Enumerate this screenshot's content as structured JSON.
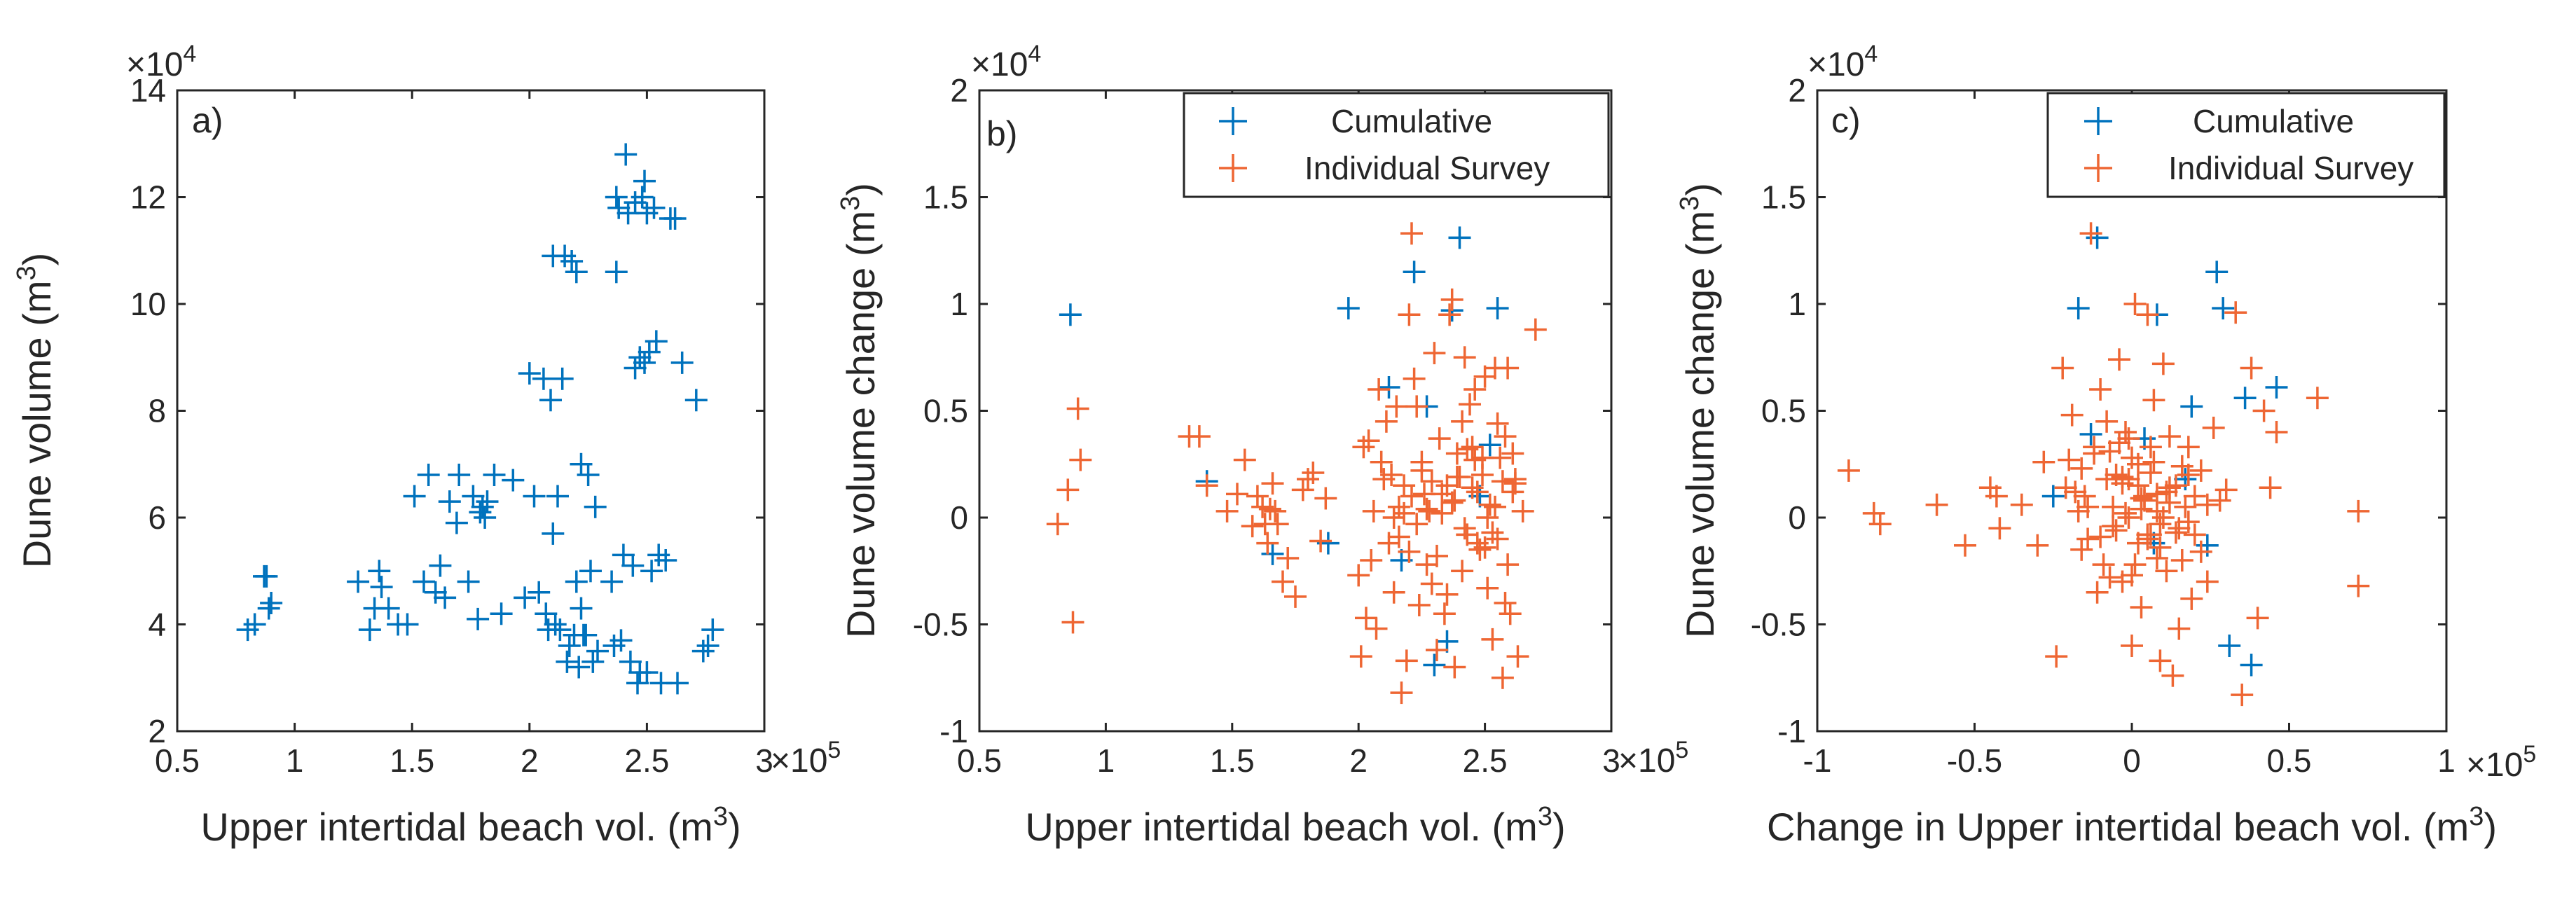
{
  "colors": {
    "cumulative": "#0072BD",
    "individual": "#EE6633",
    "axis": "#262626"
  },
  "chart_data": [
    {
      "type": "scatter",
      "panel_letter": "a)",
      "title": "",
      "xlabel": "Upper intertidal beach vol. (m",
      "xlabel_sup": "3",
      "xlabel_end": ")",
      "ylabel": "Dune volume (m",
      "ylabel_sup": "3",
      "ylabel_end": ")",
      "xlim": [
        0.5,
        3
      ],
      "ylim": [
        2,
        14
      ],
      "xticks": [
        0.5,
        1,
        1.5,
        2,
        2.5,
        3
      ],
      "xticklabels": [
        "0.5",
        "1",
        "1.5",
        "2",
        "2.5",
        "3"
      ],
      "yticks": [
        2,
        4,
        6,
        8,
        10,
        12,
        14
      ],
      "yticklabels": [
        "2",
        "4",
        "6",
        "8",
        "10",
        "12",
        "14"
      ],
      "x_exponent_base": "×10",
      "x_exponent_power": "5",
      "y_exponent_base": "×10",
      "y_exponent_power": "4",
      "legend": null,
      "series": [
        {
          "name": "Cumulative",
          "color_key": "cumulative",
          "x": [
            0.8,
            0.83,
            0.87,
            0.88,
            0.89,
            0.9,
            1.27,
            1.32,
            1.34,
            1.36,
            1.37,
            1.4,
            1.44,
            1.48,
            1.51,
            1.55,
            1.57,
            1.6,
            1.62,
            1.64,
            1.66,
            1.69,
            1.7,
            1.74,
            1.76,
            1.78,
            1.79,
            1.8,
            1.81,
            1.82,
            1.85,
            1.88,
            1.93,
            1.98,
            2.0,
            2.02,
            2.04,
            2.06,
            2.07,
            2.08,
            2.09,
            2.1,
            2.1,
            2.11,
            2.12,
            2.13,
            2.14,
            2.15,
            2.16,
            2.17,
            2.18,
            2.19,
            2.2,
            2.2,
            2.21,
            2.22,
            2.22,
            2.23,
            2.24,
            2.25,
            2.26,
            2.27,
            2.28,
            2.29,
            2.35,
            2.36,
            2.37,
            2.37,
            2.38,
            2.39,
            2.4,
            2.41,
            2.42,
            2.43,
            2.44,
            2.45,
            2.45,
            2.46,
            2.47,
            2.47,
            2.48,
            2.49,
            2.49,
            2.5,
            2.5,
            2.51,
            2.52,
            2.53,
            2.54,
            2.55,
            2.56,
            2.58,
            2.6,
            2.62,
            2.63,
            2.65,
            2.71,
            2.74,
            2.76,
            2.78
          ],
          "y": [
            3.9,
            4.0,
            4.9,
            4.9,
            4.3,
            4.4,
            4.8,
            3.9,
            4.3,
            5.0,
            4.7,
            4.3,
            4.0,
            4.0,
            6.4,
            4.8,
            6.8,
            4.6,
            5.1,
            4.5,
            6.3,
            5.9,
            6.8,
            4.8,
            6.4,
            4.1,
            6.1,
            6.2,
            6.0,
            6.3,
            6.8,
            4.2,
            6.7,
            4.5,
            8.7,
            6.4,
            4.6,
            8.6,
            4.2,
            3.9,
            8.2,
            5.7,
            10.9,
            4.0,
            6.4,
            3.9,
            8.6,
            10.9,
            3.3,
            3.6,
            10.8,
            3.8,
            4.8,
            10.6,
            3.2,
            4.3,
            7.0,
            3.8,
            3.8,
            6.8,
            5.0,
            3.3,
            6.2,
            3.5,
            4.8,
            3.6,
            12.0,
            10.6,
            11.8,
            3.7,
            5.3,
            12.8,
            11.7,
            3.3,
            5.1,
            8.8,
            11.9,
            2.9,
            9.0,
            3.1,
            12.0,
            12.3,
            8.9,
            11.7,
            3.1,
            9.1,
            5.0,
            11.8,
            9.3,
            5.3,
            2.9,
            5.2,
            11.6,
            11.6,
            2.9,
            8.9,
            8.2,
            3.5,
            3.6,
            3.9
          ]
        }
      ]
    },
    {
      "type": "scatter",
      "panel_letter": "b)",
      "title": "",
      "xlabel": "Upper intertidal beach vol. (m",
      "xlabel_sup": "3",
      "xlabel_end": ")",
      "ylabel": "Dune volume change (m",
      "ylabel_sup": "3",
      "ylabel_end": ")",
      "xlim": [
        0.5,
        3
      ],
      "ylim": [
        -1,
        2
      ],
      "xticks": [
        0.5,
        1,
        1.5,
        2,
        2.5,
        3
      ],
      "xticklabels": [
        "0.5",
        "1",
        "1.5",
        "2",
        "2.5",
        "3"
      ],
      "yticks": [
        -1,
        -0.5,
        0,
        0.5,
        1,
        1.5,
        2
      ],
      "yticklabels": [
        "-1",
        "-0.5",
        "0",
        "0.5",
        "1",
        "1.5",
        "2"
      ],
      "x_exponent_base": "×10",
      "x_exponent_power": "5",
      "y_exponent_base": "×10",
      "y_exponent_power": "4",
      "legend": {
        "location": "top-right",
        "entries": [
          "Cumulative",
          "Individual Survey"
        ]
      },
      "series": [
        {
          "name": "Cumulative",
          "color_key": "cumulative",
          "x": [
            0.86,
            1.4,
            1.66,
            1.88,
            1.96,
            2.12,
            2.17,
            2.22,
            2.27,
            2.3,
            2.35,
            2.37,
            2.4,
            2.48,
            2.52,
            2.55
          ],
          "y": [
            0.95,
            0.17,
            -0.17,
            -0.12,
            0.98,
            0.61,
            -0.2,
            1.15,
            0.52,
            -0.69,
            -0.58,
            0.97,
            1.31,
            0.1,
            0.34,
            0.98
          ]
        },
        {
          "name": "Individual Survey",
          "color_key": "individual",
          "x": [
            0.81,
            0.85,
            0.87,
            0.89,
            0.9,
            1.33,
            1.37,
            1.4,
            1.48,
            1.52,
            1.55,
            1.58,
            1.6,
            1.62,
            1.63,
            1.64,
            1.65,
            1.66,
            1.67,
            1.68,
            1.7,
            1.72,
            1.75,
            1.78,
            1.8,
            1.82,
            1.85,
            1.87,
            2.0,
            2.01,
            2.02,
            2.03,
            2.04,
            2.05,
            2.06,
            2.07,
            2.08,
            2.09,
            2.1,
            2.11,
            2.12,
            2.13,
            2.14,
            2.15,
            2.16,
            2.17,
            2.18,
            2.19,
            2.2,
            2.21,
            2.22,
            2.23,
            2.24,
            2.25,
            2.26,
            2.27,
            2.28,
            2.29,
            2.3,
            2.31,
            2.32,
            2.33,
            2.34,
            2.35,
            2.36,
            2.37,
            2.38,
            2.39,
            2.4,
            2.41,
            2.42,
            2.43,
            2.44,
            2.45,
            2.46,
            2.47,
            2.48,
            2.49,
            2.5,
            2.51,
            2.52,
            2.53,
            2.54,
            2.55,
            2.56,
            2.57,
            2.58,
            2.59,
            2.6,
            2.61,
            2.62,
            2.63,
            2.65,
            2.7,
            2.21,
            2.23,
            2.25,
            2.27,
            2.29,
            2.31,
            2.33,
            2.35,
            2.37,
            2.39,
            2.41,
            2.43,
            2.45,
            2.47,
            2.49,
            2.51,
            2.53,
            2.55,
            2.57,
            2.59,
            2.61,
            2.38,
            2.42,
            2.46,
            2.5,
            2.54,
            2.58,
            2.62,
            2.14,
            2.16,
            2.18,
            2.2
          ],
          "y": [
            -0.03,
            0.13,
            -0.49,
            0.51,
            0.27,
            0.38,
            0.38,
            0.15,
            0.03,
            0.11,
            0.27,
            -0.04,
            0.1,
            0.05,
            -0.03,
            -0.12,
            0.04,
            0.16,
            0.03,
            -0.03,
            -0.3,
            -0.19,
            -0.37,
            0.13,
            0.18,
            0.21,
            -0.11,
            0.09,
            -0.27,
            -0.65,
            0.33,
            -0.47,
            0.36,
            -0.2,
            0.03,
            -0.52,
            0.6,
            0.26,
            0.18,
            0.45,
            -0.12,
            0.2,
            -0.35,
            0.52,
            0.05,
            -0.82,
            0.15,
            -0.67,
            0.95,
            1.33,
            0.65,
            0.52,
            -0.41,
            0.26,
            0.11,
            -0.22,
            0.03,
            -0.31,
            0.77,
            -0.62,
            0.37,
            0.11,
            -0.45,
            0.15,
            0.95,
            1.02,
            -0.7,
            0.3,
            0.19,
            0.45,
            0.75,
            -0.08,
            0.53,
            0.33,
            0.6,
            0.12,
            -0.15,
            0.2,
            0.66,
            -0.33,
            0.06,
            -0.57,
            0.7,
            -0.1,
            0.28,
            -0.75,
            0.38,
            0.7,
            -0.45,
            0.3,
            0.18,
            -0.65,
            0.03,
            0.88,
            0.1,
            -0.03,
            0.22,
            0.04,
            0.17,
            -0.18,
            0.02,
            -0.36,
            0.07,
            0.19,
            -0.25,
            0.32,
            0.14,
            -0.12,
            0.28,
            0.0,
            -0.07,
            0.44,
            0.17,
            -0.22,
            0.12,
            0.08,
            -0.05,
            0.27,
            -0.14,
            0.05,
            -0.4,
            0.16,
            0.0,
            -0.09,
            0.02,
            -0.16
          ]
        }
      ]
    },
    {
      "type": "scatter",
      "panel_letter": "c)",
      "title": "",
      "xlabel": "Change in Upper intertidal beach vol. (m",
      "xlabel_sup": "3",
      "xlabel_end": ")",
      "ylabel": "Dune volume change (m",
      "ylabel_sup": "3",
      "ylabel_end": ")",
      "xlim": [
        -1,
        1
      ],
      "ylim": [
        -1,
        2
      ],
      "xticks": [
        -1,
        -0.5,
        0,
        0.5,
        1
      ],
      "xticklabels": [
        "-1",
        "-0.5",
        "0",
        "0.5",
        "1"
      ],
      "yticks": [
        -1,
        -0.5,
        0,
        0.5,
        1,
        1.5,
        2
      ],
      "yticklabels": [
        "-1",
        "-0.5",
        "0",
        "0.5",
        "1",
        "1.5",
        "2"
      ],
      "x_exponent_base": "×10",
      "x_exponent_power": "5",
      "y_exponent_base": "×10",
      "y_exponent_power": "4",
      "legend": {
        "location": "top-right",
        "entries": [
          "Cumulative",
          "Individual Survey"
        ]
      },
      "series": [
        {
          "name": "Cumulative",
          "color_key": "cumulative",
          "x": [
            -0.25,
            -0.17,
            -0.13,
            -0.11,
            0.04,
            0.08,
            0.17,
            0.19,
            0.24,
            0.27,
            0.29,
            0.31,
            0.36,
            0.38,
            0.46,
            0.07
          ],
          "y": [
            0.1,
            0.98,
            0.39,
            1.31,
            0.37,
            0.95,
            0.18,
            0.52,
            -0.13,
            1.15,
            0.98,
            -0.6,
            0.56,
            -0.69,
            0.61,
            -0.12
          ]
        },
        {
          "name": "Individual Survey",
          "color_key": "individual",
          "x": [
            -0.9,
            -0.82,
            -0.8,
            -0.62,
            -0.53,
            -0.45,
            -0.43,
            -0.42,
            -0.35,
            -0.3,
            -0.28,
            -0.24,
            -0.22,
            -0.21,
            -0.19,
            -0.17,
            -0.16,
            -0.15,
            -0.14,
            -0.13,
            -0.12,
            -0.11,
            -0.1,
            -0.09,
            -0.08,
            -0.07,
            -0.06,
            -0.05,
            -0.04,
            -0.03,
            -0.02,
            -0.01,
            0.0,
            0.01,
            0.02,
            0.03,
            0.04,
            0.05,
            0.06,
            0.07,
            0.08,
            0.09,
            0.1,
            0.11,
            0.12,
            0.13,
            0.14,
            0.15,
            0.16,
            0.17,
            0.18,
            0.19,
            0.2,
            0.22,
            0.24,
            0.26,
            0.28,
            0.3,
            0.33,
            0.35,
            0.38,
            0.4,
            0.42,
            0.44,
            0.46,
            0.59,
            0.72,
            0.72,
            -0.2,
            -0.18,
            -0.16,
            -0.14,
            -0.12,
            -0.1,
            -0.08,
            -0.06,
            -0.04,
            -0.02,
            0.0,
            0.02,
            0.04,
            0.06,
            0.08,
            0.1,
            0.12,
            0.14,
            0.16,
            0.18,
            0.2,
            0.22,
            0.24,
            -0.07,
            -0.05,
            -0.03,
            -0.01,
            0.01,
            0.03,
            0.05,
            0.07,
            0.09,
            0.11,
            -0.03,
            0.0,
            0.03,
            0.06,
            0.09,
            0.12,
            0.15,
            0.18,
            -0.01,
            0.02,
            0.05,
            0.08
          ],
          "y": [
            0.22,
            0.02,
            -0.03,
            0.06,
            -0.13,
            0.14,
            0.1,
            -0.05,
            0.06,
            -0.13,
            0.26,
            -0.65,
            0.7,
            0.14,
            0.48,
            0.03,
            0.23,
            0.1,
            -0.1,
            1.33,
            0.33,
            -0.35,
            0.6,
            -0.22,
            0.45,
            -0.28,
            0.05,
            0.2,
            0.74,
            -0.3,
            0.4,
            0.18,
            -0.6,
            1.0,
            0.25,
            -0.42,
            0.1,
            0.95,
            -0.08,
            0.55,
            0.03,
            -0.67,
            0.72,
            -0.25,
            0.38,
            -0.74,
            0.15,
            -0.52,
            -0.2,
            0.05,
            0.33,
            -0.38,
            -0.08,
            0.22,
            -0.3,
            0.42,
            0.08,
            0.13,
            0.96,
            -0.83,
            0.7,
            -0.47,
            0.5,
            0.14,
            0.4,
            0.56,
            0.03,
            -0.32,
            0.27,
            0.12,
            -0.15,
            0.05,
            0.3,
            -0.09,
            0.18,
            -0.04,
            0.35,
            0.02,
            0.28,
            -0.12,
            0.08,
            0.21,
            -0.19,
            0.0,
            0.14,
            -0.07,
            0.24,
            -0.02,
            0.1,
            -0.16,
            0.06,
            0.31,
            -0.06,
            0.16,
            0.37,
            -0.22,
            0.09,
            -0.1,
            0.26,
            -0.03,
            0.12,
            0.19,
            -0.27,
            0.04,
            0.33,
            -0.14,
            0.07,
            -0.05,
            0.2,
            0.0,
            0.15,
            -0.08,
            0.11
          ]
        }
      ]
    }
  ]
}
